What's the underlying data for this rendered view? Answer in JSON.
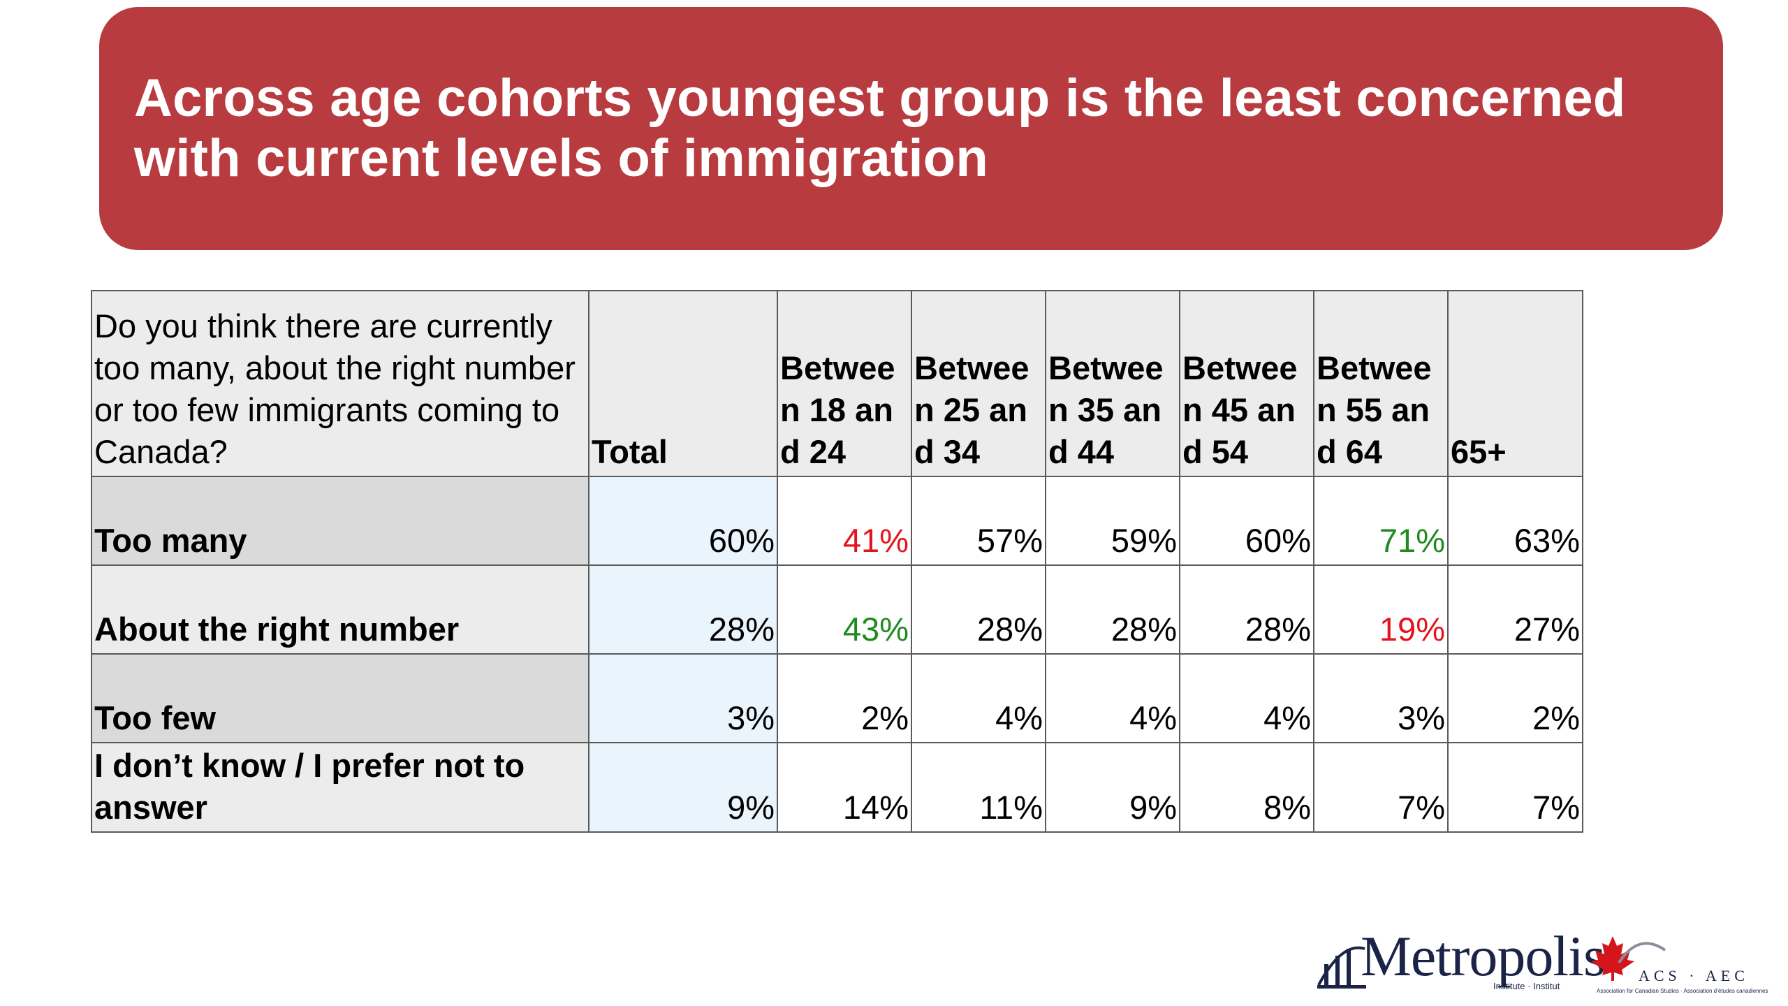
{
  "title": {
    "line1": "Across age cohorts youngest group is the least concerned",
    "line2": "with current levels of immigration"
  },
  "table": {
    "question": "Do you think there are currently too many, about the right number or too few immigrants coming to Canada?",
    "columns": [
      "Total",
      "Between 18 and 24",
      "Between 25 and 34",
      "Between 35 and 44",
      "Between 45 and 54",
      "Between 55 and 64",
      "65+"
    ],
    "rows": [
      {
        "label": "Too many",
        "values": [
          "60%",
          "41%",
          "57%",
          "59%",
          "60%",
          "71%",
          "63%"
        ]
      },
      {
        "label": "About the right number",
        "values": [
          "28%",
          "43%",
          "28%",
          "28%",
          "28%",
          "19%",
          "27%"
        ]
      },
      {
        "label": "Too few",
        "values": [
          "3%",
          "2%",
          "4%",
          "4%",
          "4%",
          "3%",
          "2%"
        ]
      },
      {
        "label": "I don’t know / I prefer not to answer",
        "values": [
          "9%",
          "14%",
          "11%",
          "9%",
          "8%",
          "7%",
          "7%"
        ]
      }
    ],
    "highlight_colors": {
      "low": "#e3141b",
      "high": "#1f8a1f"
    }
  },
  "logo": {
    "name": "Metropolis",
    "tagline": "Institute · Institut",
    "partner": "ACS · AEC",
    "partner_tagline": "Association for Canadian Studies · Association d’études canadiennes"
  }
}
